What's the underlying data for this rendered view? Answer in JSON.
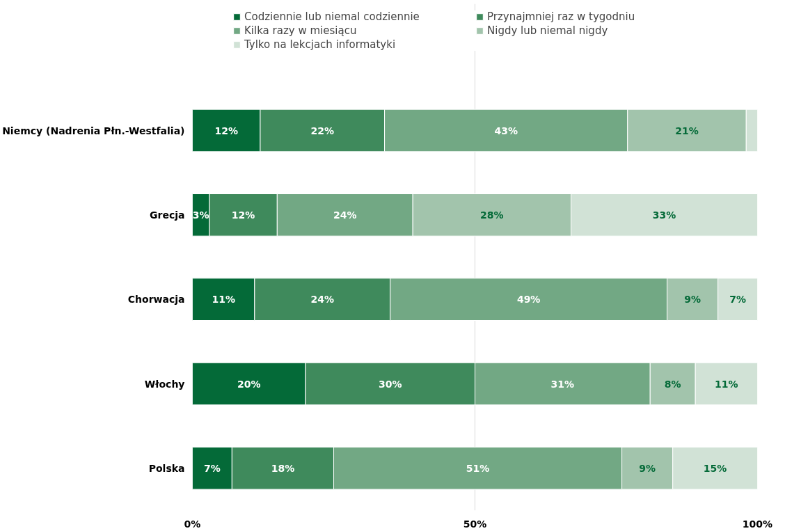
{
  "chart_data": {
    "type": "bar",
    "orientation": "horizontal",
    "stacked": true,
    "categories": [
      "Niemcy (Nadrenia Płn.-Westfalia)",
      "Grecja",
      "Chorwacja",
      "Włochy",
      "Polska"
    ],
    "series": [
      {
        "name": "Codziennie lub niemal codziennie",
        "color": "#046a38",
        "values": [
          12,
          3,
          11,
          20,
          7
        ],
        "value_labels": [
          "12%",
          "3%",
          "11%",
          "20%",
          "7%"
        ]
      },
      {
        "name": "Przynajmniej raz w tygodniu",
        "color": "#3f8a5c",
        "values": [
          22,
          12,
          24,
          30,
          18
        ],
        "value_labels": [
          "22%",
          "12%",
          "24%",
          "30%",
          "18%"
        ]
      },
      {
        "name": "Kilka razy w miesiącu",
        "color": "#72a884",
        "values": [
          43,
          24,
          49,
          31,
          51
        ],
        "value_labels": [
          "43%",
          "24%",
          "49%",
          "31%",
          "51%"
        ]
      },
      {
        "name": "Nigdy lub niemal nigdy",
        "color": "#a2c4ac",
        "values": [
          21,
          28,
          9,
          8,
          9
        ],
        "value_labels": [
          "21%",
          "28%",
          "9%",
          "8%",
          "9%"
        ]
      },
      {
        "name": "Tylko na lekcjach informatyki",
        "color": "#d1e2d6",
        "values": [
          2,
          33,
          7,
          11,
          15
        ],
        "value_labels": [
          null,
          "33%",
          "7%",
          "11%",
          "15%"
        ]
      }
    ],
    "xlim": [
      0,
      100
    ],
    "xticks": [
      {
        "value": 0,
        "label": "0%"
      },
      {
        "value": 50,
        "label": "50%"
      },
      {
        "value": 100,
        "label": "100%"
      }
    ],
    "grid": "x",
    "legend": "top"
  }
}
